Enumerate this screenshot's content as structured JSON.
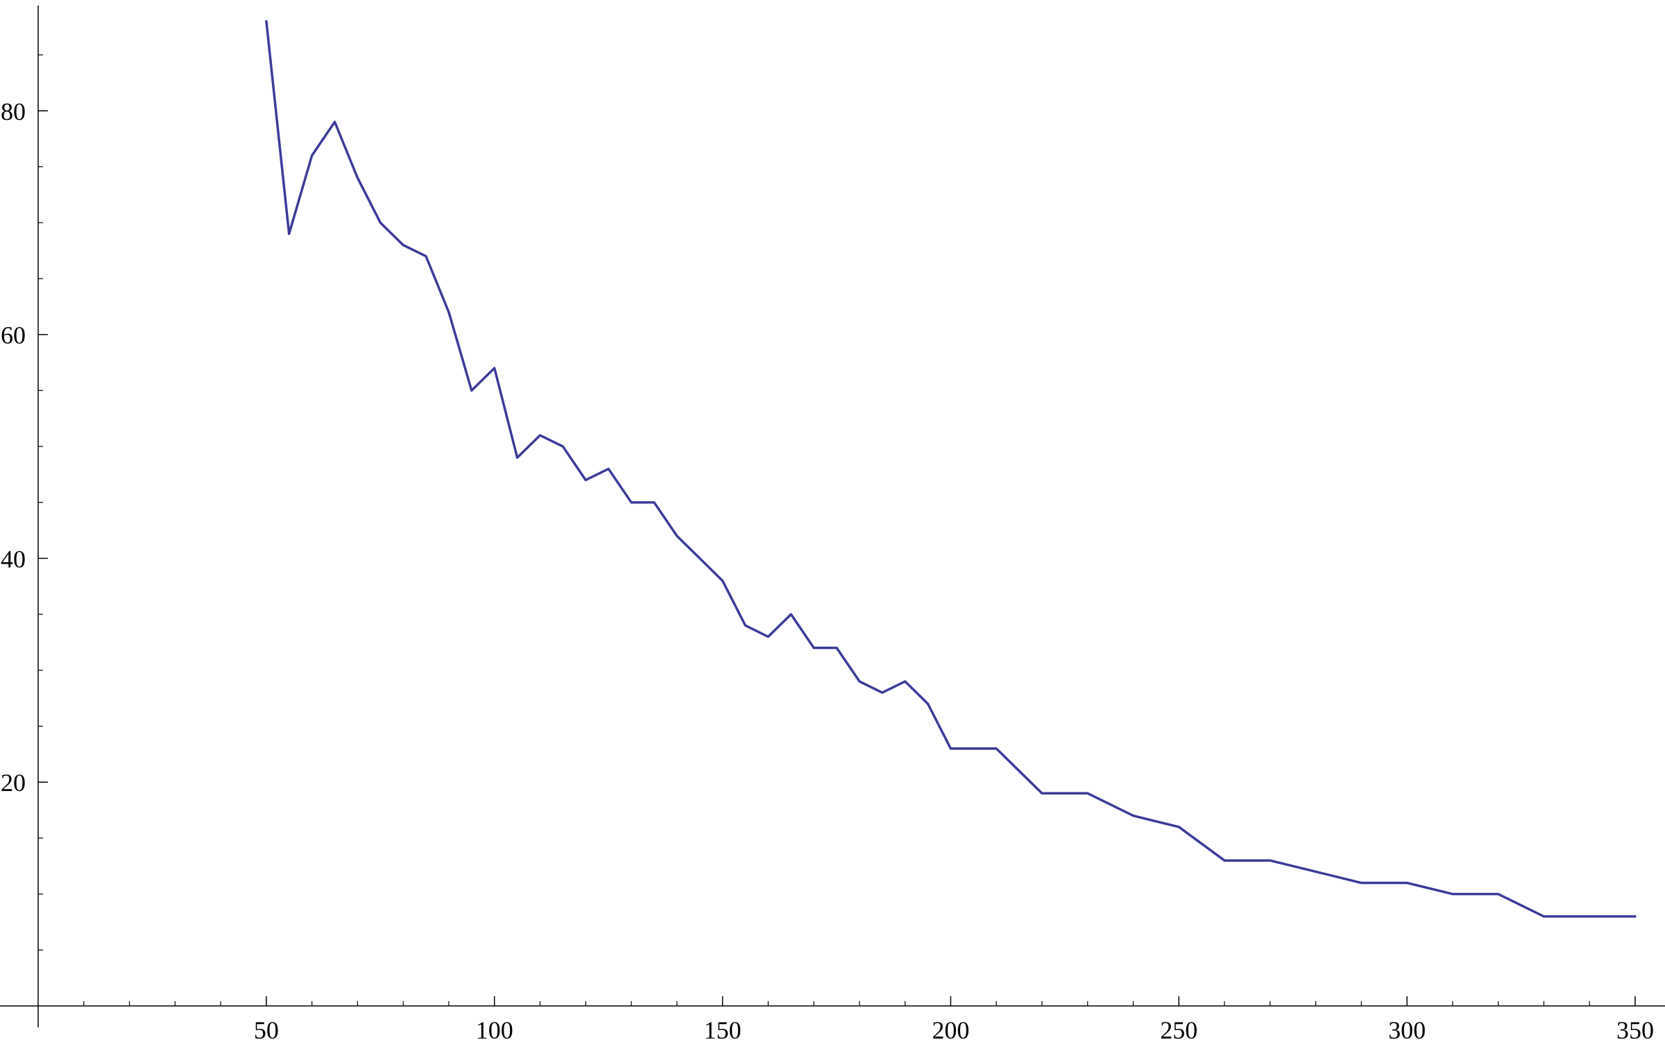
{
  "chart_data": {
    "type": "line",
    "title": "",
    "xlabel": "",
    "ylabel": "",
    "xlim": [
      0,
      358
    ],
    "ylim": [
      0,
      88
    ],
    "grid": false,
    "legend": "none",
    "line_color": "#3b3b9a",
    "x_ticks": [
      50,
      100,
      150,
      200,
      250,
      300,
      350
    ],
    "y_ticks": [
      20,
      40,
      60,
      80
    ],
    "series": [
      {
        "x": [
          50,
          55,
          60,
          65,
          70,
          75,
          80,
          85,
          90,
          95,
          100,
          105,
          110,
          115,
          120,
          125,
          130,
          135,
          140,
          145,
          150,
          155,
          160,
          165,
          170,
          175,
          180,
          185,
          190,
          195,
          200,
          210,
          220,
          230,
          240,
          250,
          260,
          270,
          280,
          290,
          300,
          310,
          320,
          330,
          340,
          350
        ],
        "y": [
          88,
          69,
          76,
          79,
          74,
          70,
          68,
          67,
          62,
          55,
          57,
          49,
          51,
          50,
          47,
          48,
          45,
          45,
          42,
          40,
          38,
          34,
          33,
          35,
          32,
          32,
          29,
          28,
          29,
          27,
          23,
          23,
          19,
          19,
          17,
          16,
          13,
          13,
          12,
          11,
          11,
          10,
          10,
          8,
          8,
          8
        ]
      }
    ]
  }
}
